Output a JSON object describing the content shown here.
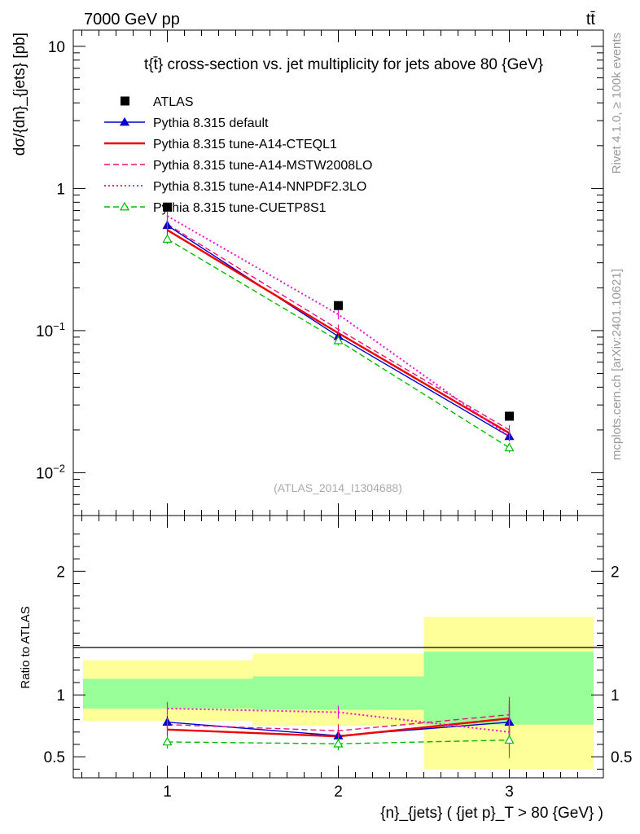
{
  "header": {
    "left": "7000 GeV pp",
    "right": "tt̄"
  },
  "side_labels": {
    "rivet": "Rivet 4.1.0, ≥ 100k events",
    "mcplots": "mcplots.cern.ch [arXiv:2401.10621]"
  },
  "chart_data": {
    "type": "line",
    "title": "t{t̄} cross-section vs. jet multiplicity for jets above 80 {GeV}",
    "watermark": "(ATLAS_2014_I1304688)",
    "xlabel": "{n}_{jets} ( {jet p}_T > 80 {GeV} )",
    "ylabel": "dσ/{dn}_{jets} [pb]",
    "ratio_ylabel": "Ratio to ATLAS",
    "xlim": [
      0.45,
      3.55
    ],
    "ylim": [
      0.005,
      13
    ],
    "yscale": "log",
    "ratio_ylim": [
      0.33,
      2.45
    ],
    "x": [
      1,
      2,
      3
    ],
    "x_ticks": [
      "1",
      "2",
      "3"
    ],
    "y_ticks": [
      "10^-2",
      "10^-1",
      "1",
      "10"
    ],
    "ratio_ticks": [
      "0.5",
      "1",
      "2"
    ],
    "data": {
      "name": "ATLAS",
      "values": [
        0.74,
        0.15,
        0.025
      ],
      "bins": [
        [
          0.45,
          1.5
        ],
        [
          1.5,
          2.5
        ],
        [
          2.5,
          3.5
        ]
      ],
      "band_inner": [
        [
          0.89,
          1.13
        ],
        [
          0.88,
          1.15
        ],
        [
          0.76,
          1.35
        ]
      ],
      "band_outer": [
        [
          0.79,
          1.28
        ],
        [
          0.75,
          1.33
        ],
        [
          0.4,
          1.63
        ]
      ]
    },
    "series": [
      {
        "name": "Pythia 8.315 default",
        "values": [
          0.55,
          0.091,
          0.018
        ],
        "ratio": [
          0.78,
          0.67,
          0.78
        ],
        "color": "#0000cc",
        "style": "solid",
        "marker": "triangle-filled"
      },
      {
        "name": "Pythia 8.315 tune-A14-CTEQL1",
        "values": [
          0.51,
          0.096,
          0.019
        ],
        "ratio": [
          0.72,
          0.665,
          0.81
        ],
        "color": "#ee0000",
        "style": "solid-thick",
        "marker": "none"
      },
      {
        "name": "Pythia 8.315 tune-A14-MSTW2008LO",
        "values": [
          0.56,
          0.102,
          0.02
        ],
        "ratio": [
          0.76,
          0.71,
          0.84
        ],
        "color": "#ee1177",
        "style": "dashed",
        "marker": "none"
      },
      {
        "name": "Pythia 8.315 tune-A14-NNPDF2.3LO",
        "values": [
          0.64,
          0.13,
          0.018
        ],
        "ratio": [
          0.89,
          0.86,
          0.7
        ],
        "color": "#ee11cc",
        "style": "dotted",
        "marker": "none"
      },
      {
        "name": "Pythia 8.315 tune-CUETP8S1",
        "values": [
          0.44,
          0.085,
          0.015
        ],
        "ratio": [
          0.62,
          0.605,
          0.635
        ],
        "color": "#00bb00",
        "style": "dashed",
        "marker": "triangle-open"
      }
    ]
  }
}
